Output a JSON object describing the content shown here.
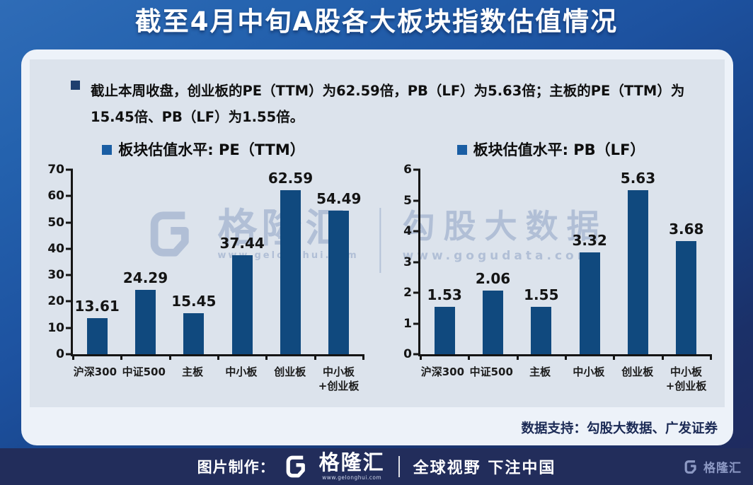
{
  "page_title": "截至4月中旬A股各大板块指数估值情况",
  "summary_text": "截止本周收盘，创业板的PE（TTM）为62.59倍，PB（LF）为5.63倍；主板的PE（TTM）为15.45倍、PB（LF）为1.55倍。",
  "chart_data": [
    {
      "type": "bar",
      "title": "板块估值水平: PE（TTM）",
      "categories": [
        "沪深300",
        "中证500",
        "主板",
        "中小板",
        "创业板",
        "中小板+创业板"
      ],
      "values": [
        13.61,
        24.29,
        15.45,
        37.44,
        62.59,
        54.49
      ],
      "ylim": [
        0,
        70
      ],
      "yticks": [
        0,
        10,
        20,
        30,
        40,
        50,
        60,
        70
      ],
      "bar_color": "#10497e",
      "grid": false,
      "legend_position": "top",
      "value_labels": "above bars"
    },
    {
      "type": "bar",
      "title": "板块估值水平: PB（LF）",
      "categories": [
        "沪深300",
        "中证500",
        "主板",
        "中小板",
        "创业板",
        "中小板+创业板"
      ],
      "values": [
        1.53,
        2.06,
        1.55,
        3.32,
        5.63,
        3.68
      ],
      "ylim": [
        0,
        6
      ],
      "yticks": [
        0,
        1,
        2,
        3,
        4,
        5,
        6
      ],
      "bar_color": "#10497e",
      "grid": false,
      "legend_position": "top",
      "value_labels": "above bars"
    }
  ],
  "watermark": {
    "brand": "格隆汇",
    "brand_url": "www.gelonghui.com",
    "partner": "勾股大数据",
    "partner_url": "www.gogudata.com"
  },
  "data_support": "数据支持：勾股大数据、广发证券",
  "footer": {
    "label": "图片制作：",
    "brand": "格隆汇",
    "brand_url": "www.gelonghui.com",
    "slogan": "全球视野 下注中国",
    "corner_brand": "格隆汇"
  },
  "colors": {
    "bar": "#10497e",
    "legend_accent": "#1a5ea4",
    "panel_bg": "#dce3ec",
    "card_bg": "#edf2f9",
    "footer_bg": "#222d5b",
    "title_text": "#ffffff",
    "watermark_text": "#96a9c8"
  }
}
